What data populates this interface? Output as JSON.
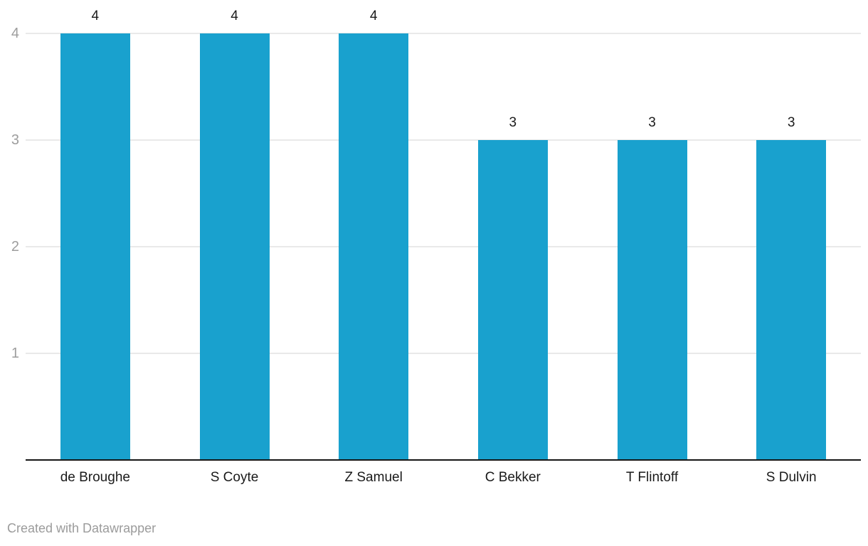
{
  "chart_data": {
    "type": "bar",
    "categories": [
      "de Broughe",
      "S Coyte",
      "Z Samuel",
      "C Bekker",
      "T Flintoff",
      "S Dulvin"
    ],
    "values": [
      4,
      4,
      4,
      3,
      3,
      3
    ],
    "data_labels": [
      "4",
      "4",
      "4",
      "3",
      "3",
      "3"
    ],
    "title": "",
    "xlabel": "",
    "ylabel": "",
    "ylim": [
      0,
      4
    ],
    "yticks": [
      "1",
      "2",
      "3",
      "4"
    ],
    "grid": true,
    "legend": false
  },
  "colors": {
    "bar": "#19a1ce",
    "gridline": "#e9e9e9",
    "axis_line": "#161616",
    "tick_label": "#9d9d9d",
    "value_label": "#1a1a1a",
    "category_label": "#1a1a1a",
    "attribution": "#9b9b9b",
    "background": "#ffffff"
  },
  "footer": {
    "attribution": "Created with Datawrapper"
  }
}
